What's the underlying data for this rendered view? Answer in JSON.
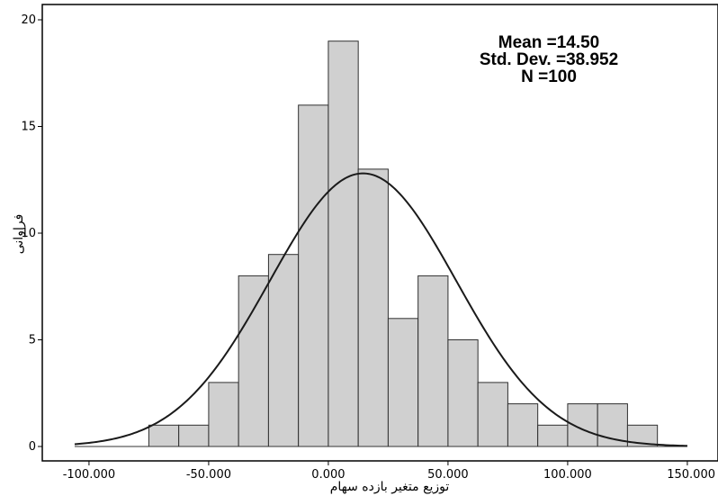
{
  "chart_data": {
    "type": "histogram",
    "xlabel": "توزیع متغیر بازده سهام",
    "ylabel": "فراوانی",
    "x_ticks": [
      -100,
      -50,
      0,
      50,
      100,
      150
    ],
    "x_tick_labels": [
      "-100.000",
      "-50.000",
      "0.000",
      "50.000",
      "100.000",
      "150.000"
    ],
    "y_ticks": [
      0,
      5,
      10,
      15,
      20
    ],
    "y_tick_labels": [
      "0",
      "5",
      "10",
      "15",
      "20"
    ],
    "xlim": [
      -112,
      150
    ],
    "ylim": [
      0,
      20.5
    ],
    "bin_width": 12.5,
    "bins": [
      {
        "start": -75.0,
        "end": -62.5,
        "count": 1
      },
      {
        "start": -62.5,
        "end": -50.0,
        "count": 1
      },
      {
        "start": -50.0,
        "end": -37.5,
        "count": 3
      },
      {
        "start": -37.5,
        "end": -25.0,
        "count": 8
      },
      {
        "start": -25.0,
        "end": -12.5,
        "count": 9
      },
      {
        "start": -12.5,
        "end": 0.0,
        "count": 16
      },
      {
        "start": 0.0,
        "end": 12.5,
        "count": 19
      },
      {
        "start": 12.5,
        "end": 25.0,
        "count": 13
      },
      {
        "start": 25.0,
        "end": 37.5,
        "count": 6
      },
      {
        "start": 37.5,
        "end": 50.0,
        "count": 8
      },
      {
        "start": 50.0,
        "end": 62.5,
        "count": 5
      },
      {
        "start": 62.5,
        "end": 75.0,
        "count": 3
      },
      {
        "start": 75.0,
        "end": 87.5,
        "count": 2
      },
      {
        "start": 87.5,
        "end": 100.0,
        "count": 1
      },
      {
        "start": 100.0,
        "end": 112.5,
        "count": 2
      },
      {
        "start": 112.5,
        "end": 125.0,
        "count": 2
      },
      {
        "start": 125.0,
        "end": 137.5,
        "count": 1
      }
    ],
    "normal_curve": {
      "mean": 14.5,
      "std_dev": 38.952,
      "n": 100
    },
    "stats_labels": {
      "mean": "Mean =14.50",
      "std_dev": "Std. Dev. =38.952",
      "n": "N =100"
    },
    "grid": false,
    "stats_placement": "top-right",
    "bar_fill": "#d0d0d0",
    "bar_stroke": "#303030",
    "curve_color": "#1a1a1a"
  }
}
